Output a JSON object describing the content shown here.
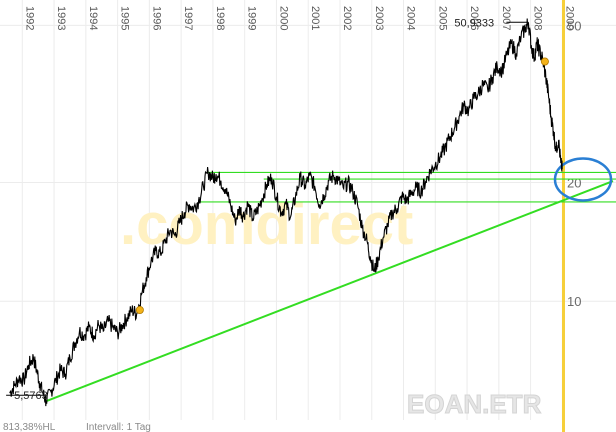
{
  "chart_data": {
    "type": "line",
    "title": "",
    "ticker": "EOAN.ETR",
    "watermark": ".comdirect",
    "footer": {
      "change": "813,38%HL",
      "interval": "Intervall: 1 Tag"
    },
    "x_ticks": [
      "1992",
      "1993",
      "1994",
      "1995",
      "1996",
      "1997",
      "1998",
      "1999",
      "2000",
      "2001",
      "2002",
      "2003",
      "2004",
      "2005",
      "2006",
      "2007",
      "2008",
      "2009"
    ],
    "x_range": [
      1991.55,
      2009.02
    ],
    "y_scale": "log",
    "y_ticks": [
      10,
      20,
      50
    ],
    "y_tick_labels": [
      "10",
      "20",
      "50"
    ],
    "ylim": [
      5.0,
      56.0
    ],
    "annotations": {
      "high_label": "50,9333",
      "high": {
        "x": 2007.93,
        "y": 50.93
      },
      "low_label": "5,5763",
      "low": {
        "x": 1992.75,
        "y": 5.58
      }
    },
    "series": [
      {
        "values": [
          [
            1991.6,
            5.85
          ],
          [
            1991.75,
            6.1
          ],
          [
            1991.9,
            6.4
          ],
          [
            1992.05,
            6.3
          ],
          [
            1992.2,
            6.9
          ],
          [
            1992.35,
            7.2
          ],
          [
            1992.45,
            6.7
          ],
          [
            1992.55,
            6.2
          ],
          [
            1992.65,
            5.85
          ],
          [
            1992.75,
            5.58
          ],
          [
            1992.9,
            5.9
          ],
          [
            1993.05,
            6.3
          ],
          [
            1993.2,
            6.7
          ],
          [
            1993.35,
            6.55
          ],
          [
            1993.5,
            7.2
          ],
          [
            1993.65,
            7.8
          ],
          [
            1993.8,
            8.4
          ],
          [
            1993.95,
            8.2
          ],
          [
            1994.1,
            8.6
          ],
          [
            1994.25,
            8.2
          ],
          [
            1994.4,
            8.7
          ],
          [
            1994.55,
            8.4
          ],
          [
            1994.7,
            8.9
          ],
          [
            1994.85,
            8.6
          ],
          [
            1995.0,
            8.3
          ],
          [
            1995.15,
            8.7
          ],
          [
            1995.3,
            9.1
          ],
          [
            1995.45,
            9.5
          ],
          [
            1995.6,
            9.3
          ],
          [
            1995.75,
            10.4
          ],
          [
            1995.9,
            11.5
          ],
          [
            1996.05,
            12.6
          ],
          [
            1996.2,
            13.4
          ],
          [
            1996.35,
            13.2
          ],
          [
            1996.5,
            14.2
          ],
          [
            1996.65,
            15.1
          ],
          [
            1996.8,
            14.7
          ],
          [
            1996.95,
            15.8
          ],
          [
            1997.1,
            16.8
          ],
          [
            1997.25,
            17.6
          ],
          [
            1997.4,
            17.2
          ],
          [
            1997.55,
            18.0
          ],
          [
            1997.7,
            19.6
          ],
          [
            1997.85,
            21.3
          ],
          [
            1998.0,
            20.5
          ],
          [
            1998.1,
            21.0
          ],
          [
            1998.25,
            20.2
          ],
          [
            1998.4,
            19.2
          ],
          [
            1998.55,
            17.6
          ],
          [
            1998.7,
            16.0
          ],
          [
            1998.85,
            17.2
          ],
          [
            1998.95,
            16.4
          ],
          [
            1999.1,
            17.6
          ],
          [
            1999.25,
            16.2
          ],
          [
            1999.4,
            17.0
          ],
          [
            1999.55,
            18.2
          ],
          [
            1999.7,
            19.8
          ],
          [
            1999.85,
            20.6
          ],
          [
            2000.0,
            18.4
          ],
          [
            2000.15,
            16.8
          ],
          [
            2000.3,
            17.6
          ],
          [
            2000.45,
            16.4
          ],
          [
            2000.6,
            18.4
          ],
          [
            2000.75,
            20.6
          ],
          [
            2000.9,
            19.6
          ],
          [
            2001.05,
            20.8
          ],
          [
            2001.2,
            19.6
          ],
          [
            2001.35,
            17.6
          ],
          [
            2001.5,
            18.6
          ],
          [
            2001.65,
            20.2
          ],
          [
            2001.8,
            20.8
          ],
          [
            2001.95,
            20.2
          ],
          [
            2002.1,
            19.4
          ],
          [
            2002.25,
            20.0
          ],
          [
            2002.4,
            19.0
          ],
          [
            2002.55,
            17.6
          ],
          [
            2002.7,
            15.4
          ],
          [
            2002.85,
            14.2
          ],
          [
            2002.95,
            13.0
          ],
          [
            2003.08,
            11.9
          ],
          [
            2003.2,
            12.8
          ],
          [
            2003.35,
            14.4
          ],
          [
            2003.5,
            15.6
          ],
          [
            2003.65,
            16.8
          ],
          [
            2003.8,
            17.2
          ],
          [
            2003.95,
            18.4
          ],
          [
            2004.1,
            18.0
          ],
          [
            2004.25,
            18.8
          ],
          [
            2004.4,
            19.4
          ],
          [
            2004.55,
            19.0
          ],
          [
            2004.7,
            20.2
          ],
          [
            2004.85,
            21.4
          ],
          [
            2005.0,
            22.2
          ],
          [
            2005.15,
            23.2
          ],
          [
            2005.3,
            24.4
          ],
          [
            2005.45,
            26.0
          ],
          [
            2005.6,
            27.4
          ],
          [
            2005.75,
            29.4
          ],
          [
            2005.9,
            31.4
          ],
          [
            2006.05,
            30.4
          ],
          [
            2006.2,
            32.6
          ],
          [
            2006.35,
            33.6
          ],
          [
            2006.5,
            35.4
          ],
          [
            2006.65,
            34.4
          ],
          [
            2006.8,
            37.0
          ],
          [
            2006.95,
            39.4
          ],
          [
            2007.1,
            38.4
          ],
          [
            2007.25,
            42.0
          ],
          [
            2007.4,
            45.0
          ],
          [
            2007.55,
            42.5
          ],
          [
            2007.7,
            46.8
          ],
          [
            2007.85,
            49.5
          ],
          [
            2007.93,
            50.93
          ],
          [
            2008.03,
            44.0
          ],
          [
            2008.12,
            41.5
          ],
          [
            2008.2,
            45.0
          ],
          [
            2008.28,
            43.2
          ],
          [
            2008.38,
            41.0
          ],
          [
            2008.48,
            37.0
          ],
          [
            2008.56,
            33.5
          ],
          [
            2008.64,
            29.5
          ],
          [
            2008.72,
            27.0
          ],
          [
            2008.8,
            24.2
          ],
          [
            2008.88,
            25.6
          ],
          [
            2008.95,
            22.4
          ],
          [
            2009.0,
            21.6
          ]
        ]
      }
    ],
    "overlays": {
      "trendline": {
        "color": "#33dd22",
        "points": [
          [
            1992.75,
            5.58
          ],
          [
            2009.02,
            18.0
          ]
        ]
      },
      "horizontal_lines": [
        {
          "color": "#33dd22",
          "y": 21.2,
          "x_from": 1997.85
        },
        {
          "color": "#33dd22",
          "y": 20.4,
          "x_from": 1999.6
        },
        {
          "color": "#33dd22",
          "y": 17.85,
          "x_from": 1997.6
        }
      ],
      "markers": [
        {
          "x": 1995.7,
          "y": 9.5,
          "color": "#f3b21a"
        },
        {
          "x": 2008.45,
          "y": 40.5,
          "color": "#f3b21a"
        }
      ],
      "circle": {
        "color": "#2a7fd4"
      },
      "current_line_color": "#f6cf3a"
    }
  }
}
